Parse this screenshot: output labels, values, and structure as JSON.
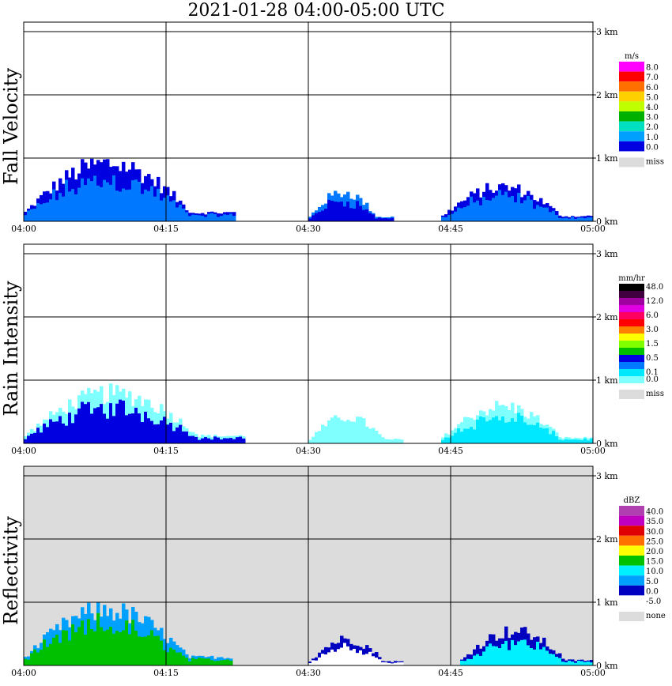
{
  "title": "2021-01-28   04:00-05:00 UTC",
  "chart_data": [
    {
      "type": "heatmap",
      "panel": "fall-velocity",
      "ylabel": "Fall Velocity",
      "xticks": [
        "04:00",
        "04:15",
        "04:30",
        "04:45",
        "05:00"
      ],
      "yticks": [
        "0 km",
        "1 km",
        "2 km",
        "3 km"
      ],
      "ylim_km": [
        0,
        3
      ],
      "grid": true,
      "missing_bg": false,
      "legend": {
        "unit": "m/s",
        "labels": [
          "8.0",
          "7.0",
          "6.0",
          "5.0",
          "4.0",
          "3.0",
          "2.0",
          "1.0",
          "0.0"
        ],
        "colors": [
          "#ff00ff",
          "#ff0000",
          "#ff7000",
          "#ffd000",
          "#c0ff00",
          "#00b000",
          "#00e0c0",
          "#00a0ff",
          "#0000e0"
        ],
        "missing_label": "miss",
        "missing_color": "#dcdcdc"
      },
      "echoes": [
        {
          "t0": 0.0,
          "t1": 22.5,
          "top_km": 1.1,
          "core": "#0078ff",
          "edge": "#0000e0"
        },
        {
          "t0": 30.0,
          "t1": 39.0,
          "top_km": 0.55,
          "core": "#0000e0",
          "edge": "#0078ff"
        },
        {
          "t0": 44.0,
          "t1": 60.0,
          "top_km": 0.65,
          "core": "#0078ff",
          "edge": "#0000e0"
        }
      ]
    },
    {
      "type": "heatmap",
      "panel": "rain-intensity",
      "ylabel": "Rain Intensity",
      "xticks": [
        "04:00",
        "04:15",
        "04:30",
        "04:45",
        "05:00"
      ],
      "yticks": [
        "0 km",
        "1 km",
        "2 km",
        "3 km"
      ],
      "ylim_km": [
        0,
        3
      ],
      "grid": true,
      "missing_bg": false,
      "legend": {
        "unit": "mm/hr",
        "labels": [
          "48.0",
          "12.0",
          "6.0",
          "3.0",
          "1.5",
          "0.5",
          "0.1",
          "0.0"
        ],
        "label_rows": [
          0,
          2,
          4,
          6,
          8,
          10,
          12,
          13
        ],
        "colors": [
          "#000000",
          "#400040",
          "#a000a0",
          "#e000e0",
          "#ff0060",
          "#ff0000",
          "#ff8000",
          "#ffff00",
          "#80ff00",
          "#00c000",
          "#0000e0",
          "#0078ff",
          "#00e8ff",
          "#80ffff"
        ],
        "missing_label": "miss",
        "missing_color": "#dcdcdc"
      },
      "echoes": [
        {
          "t0": 0.0,
          "t1": 23.5,
          "top_km": 0.95,
          "core": "#0000e0",
          "edge": "#80ffff"
        },
        {
          "t0": 30.0,
          "t1": 40.0,
          "top_km": 0.5,
          "core": "#80ffff",
          "edge": "#80ffff"
        },
        {
          "t0": 44.0,
          "t1": 60.0,
          "top_km": 0.7,
          "core": "#00e8ff",
          "edge": "#80ffff"
        }
      ]
    },
    {
      "type": "heatmap",
      "panel": "reflectivity",
      "ylabel": "Reflectivity",
      "xticks": [
        "04:00",
        "04:15",
        "04:30",
        "04:45",
        "05:00"
      ],
      "yticks": [
        "0 km",
        "1 km",
        "2 km",
        "3 km"
      ],
      "ylim_km": [
        0,
        3
      ],
      "grid": true,
      "missing_bg": true,
      "legend": {
        "unit": "dBZ",
        "labels": [
          "40.0",
          "35.0",
          "30.0",
          "25.0",
          "20.0",
          "15.0",
          "10.0",
          "5.0",
          "0.0",
          "-5.0"
        ],
        "colors": [
          "#b040b0",
          "#c000c0",
          "#e00000",
          "#ff7000",
          "#ffff00",
          "#00c000",
          "#00f0ff",
          "#00a0ff",
          "#0000c0",
          "#ffffff"
        ],
        "missing_label": "none",
        "missing_color": "#dcdcdc"
      },
      "echoes": [
        {
          "t0": 0.0,
          "t1": 22.0,
          "top_km": 1.05,
          "core": "#00c000",
          "edge": "#00a0ff"
        },
        {
          "t0": 30.0,
          "t1": 40.0,
          "top_km": 0.5,
          "core": "#ffffff",
          "edge": "#0000c0"
        },
        {
          "t0": 46.0,
          "t1": 60.0,
          "top_km": 0.65,
          "core": "#00f0ff",
          "edge": "#0000c0"
        }
      ]
    }
  ]
}
